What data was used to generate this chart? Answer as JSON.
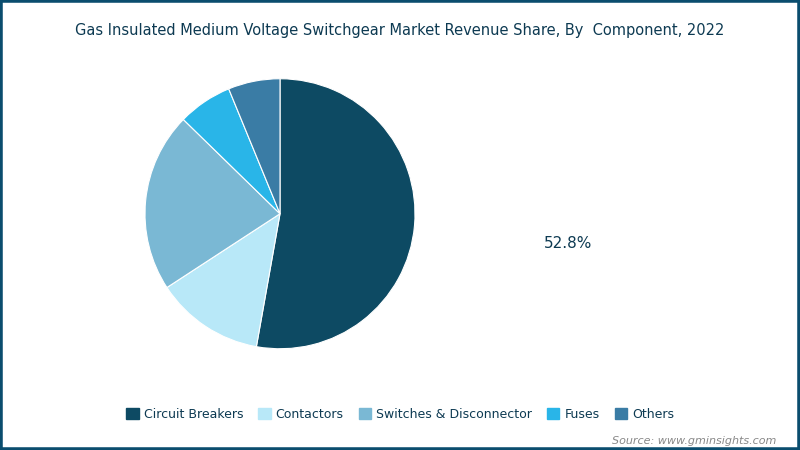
{
  "title": "Gas Insulated Medium Voltage Switchgear Market Revenue Share, By  Component, 2022",
  "segments": [
    {
      "label": "Circuit Breakers",
      "value": 52.8,
      "color": "#0d4a63"
    },
    {
      "label": "Contactors",
      "value": 13.0,
      "color": "#b8e8f8"
    },
    {
      "label": "Switches & Disconnector",
      "value": 21.5,
      "color": "#7ab8d4"
    },
    {
      "label": "Fuses",
      "value": 6.5,
      "color": "#29b5e8"
    },
    {
      "label": "Others",
      "value": 6.2,
      "color": "#3a7ca5"
    }
  ],
  "annotation_label": "52.8%",
  "source_text": "Source: www.gminsights.com",
  "background_color": "#ffffff",
  "border_color": "#0a4d6e",
  "title_color": "#0d3a52",
  "legend_label_color": "#0d3a52",
  "source_color": "#888888",
  "title_fontsize": 10.5,
  "legend_fontsize": 9.0,
  "source_fontsize": 8.0
}
